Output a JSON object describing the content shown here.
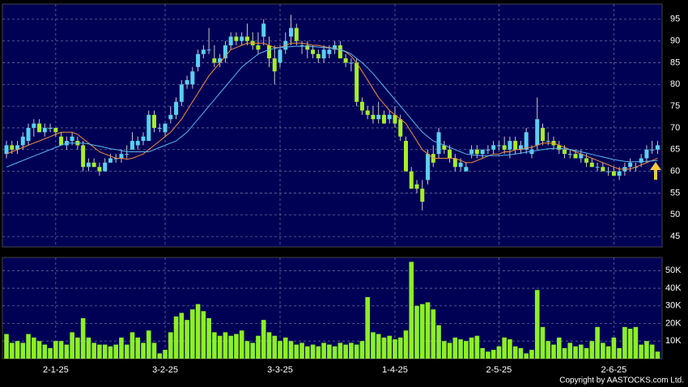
{
  "chart_data": {
    "type": "candlestick",
    "x": [
      null,
      null,
      null,
      null,
      null,
      null,
      null,
      null,
      null,
      "2-1-25",
      null,
      null,
      null,
      null,
      null,
      null,
      null,
      null,
      null,
      null,
      null,
      null,
      null,
      null,
      null,
      null,
      null,
      null,
      null,
      "3-2-25",
      null,
      null,
      null,
      null,
      null,
      null,
      null,
      null,
      null,
      null,
      null,
      null,
      null,
      null,
      null,
      null,
      null,
      null,
      null,
      null,
      "3-3-25",
      null,
      null,
      null,
      null,
      null,
      null,
      null,
      null,
      null,
      null,
      null,
      null,
      null,
      null,
      null,
      null,
      null,
      null,
      null,
      null,
      "1-4-25",
      null,
      null,
      null,
      null,
      null,
      null,
      null,
      null,
      null,
      null,
      null,
      null,
      null,
      null,
      null,
      null,
      null,
      null,
      "2-5-25",
      null,
      null,
      null,
      null,
      null,
      null,
      null,
      null,
      null,
      null,
      null,
      null,
      null,
      null,
      null,
      null,
      null,
      null,
      null,
      null,
      "2-6-25",
      null,
      null,
      null,
      null,
      null,
      null,
      null,
      null
    ],
    "ohlc": [
      [
        64,
        67,
        63,
        66
      ],
      [
        66,
        67,
        64,
        65
      ],
      [
        65,
        67,
        64,
        66
      ],
      [
        66,
        69,
        65,
        68
      ],
      [
        67,
        71,
        66,
        70
      ],
      [
        70,
        72,
        68,
        71
      ],
      [
        71,
        72,
        69,
        69
      ],
      [
        69,
        71,
        68,
        70
      ],
      [
        70,
        71,
        69,
        70
      ],
      [
        70,
        70,
        68,
        69
      ],
      [
        68,
        69,
        66,
        66
      ],
      [
        66,
        68,
        65,
        67
      ],
      [
        67,
        69,
        66,
        68
      ],
      [
        67,
        68,
        65,
        66
      ],
      [
        66,
        67,
        60,
        61
      ],
      [
        61,
        63,
        60,
        62
      ],
      [
        62,
        63,
        61,
        61
      ],
      [
        61,
        62,
        59,
        60
      ],
      [
        60,
        63,
        60,
        62
      ],
      [
        62,
        64,
        62,
        63
      ],
      [
        63,
        64,
        62,
        63
      ],
      [
        63,
        65,
        62,
        64
      ],
      [
        64,
        66,
        63,
        64
      ],
      [
        65,
        69,
        65,
        67
      ],
      [
        66,
        68,
        65,
        67
      ],
      [
        67,
        69,
        66,
        68
      ],
      [
        67,
        74,
        67,
        73
      ],
      [
        73,
        74,
        69,
        70
      ],
      [
        70,
        71,
        69,
        70
      ],
      [
        69,
        71,
        68,
        71
      ],
      [
        72,
        75,
        71,
        73
      ],
      [
        73,
        77,
        72,
        76
      ],
      [
        76,
        81,
        75,
        80
      ],
      [
        80,
        82,
        79,
        81
      ],
      [
        80,
        84,
        79,
        83
      ],
      [
        84,
        88,
        83,
        87
      ],
      [
        87,
        89,
        86,
        88
      ],
      [
        88,
        93,
        87,
        88
      ],
      [
        86,
        89,
        84,
        85
      ],
      [
        85,
        87,
        84,
        86
      ],
      [
        86,
        90,
        85,
        89
      ],
      [
        89,
        92,
        88,
        91
      ],
      [
        91,
        92,
        89,
        90
      ],
      [
        90,
        92,
        89,
        91
      ],
      [
        91,
        94,
        89,
        90
      ],
      [
        90,
        92,
        88,
        89
      ],
      [
        89,
        92,
        87,
        88
      ],
      [
        91,
        95,
        89,
        94
      ],
      [
        89,
        91,
        84,
        86
      ],
      [
        86,
        89,
        80,
        83
      ],
      [
        85,
        89,
        84,
        88
      ],
      [
        88,
        92,
        87,
        90
      ],
      [
        91,
        96,
        89,
        93
      ],
      [
        93,
        94,
        89,
        90
      ],
      [
        89,
        90,
        87,
        89
      ],
      [
        89,
        90,
        86,
        88
      ],
      [
        88,
        89,
        86,
        87
      ],
      [
        87,
        88,
        85,
        86
      ],
      [
        86,
        89,
        85,
        88
      ],
      [
        87,
        89,
        86,
        88
      ],
      [
        88,
        90,
        87,
        89
      ],
      [
        89,
        90,
        86,
        86
      ],
      [
        86,
        87,
        84,
        85
      ],
      [
        85,
        86,
        83,
        85
      ],
      [
        85,
        86,
        75,
        76
      ],
      [
        76,
        77,
        73,
        74
      ],
      [
        74,
        75,
        72,
        73
      ],
      [
        73,
        75,
        71,
        72
      ],
      [
        72,
        76,
        71,
        73
      ],
      [
        73,
        74,
        71,
        71
      ],
      [
        72,
        74,
        71,
        73
      ],
      [
        73,
        75,
        70,
        71
      ],
      [
        72,
        73,
        67,
        68
      ],
      [
        67,
        68,
        60,
        60
      ],
      [
        60,
        61,
        56,
        56
      ],
      [
        57,
        58,
        55,
        56
      ],
      [
        56,
        58,
        51,
        53
      ],
      [
        58,
        65,
        57,
        64
      ],
      [
        64,
        66,
        61,
        62
      ],
      [
        64,
        70,
        63,
        69
      ],
      [
        66,
        67,
        64,
        65
      ],
      [
        65,
        66,
        62,
        63
      ],
      [
        63,
        64,
        60,
        61
      ],
      [
        61,
        63,
        60,
        62
      ],
      [
        60,
        62,
        60,
        61
      ],
      [
        64,
        66,
        63,
        65
      ],
      [
        65,
        66,
        63,
        64
      ],
      [
        64,
        65,
        63,
        65
      ],
      [
        65,
        66,
        64,
        65
      ],
      [
        65,
        67,
        64,
        66
      ],
      [
        66,
        67,
        65,
        66
      ],
      [
        66,
        68,
        64,
        65
      ],
      [
        65,
        68,
        63,
        67
      ],
      [
        67,
        68,
        64,
        65
      ],
      [
        65,
        67,
        64,
        66
      ],
      [
        65,
        70,
        64,
        69
      ],
      [
        64,
        66,
        63,
        65
      ],
      [
        66,
        77,
        65,
        72
      ],
      [
        70,
        71,
        66,
        67
      ],
      [
        67,
        69,
        66,
        67
      ],
      [
        67,
        68,
        65,
        66
      ],
      [
        66,
        67,
        64,
        65
      ],
      [
        65,
        66,
        63,
        64
      ],
      [
        64,
        65,
        63,
        64
      ],
      [
        64,
        65,
        63,
        63
      ],
      [
        63,
        65,
        62,
        64
      ],
      [
        63,
        64,
        61,
        62
      ],
      [
        62,
        63,
        61,
        61
      ],
      [
        61,
        62,
        60,
        61
      ],
      [
        61,
        62,
        60,
        60
      ],
      [
        60,
        61,
        59,
        60
      ],
      [
        60,
        61,
        59,
        59
      ],
      [
        59,
        61,
        58,
        60
      ],
      [
        60,
        62,
        59,
        61
      ],
      [
        61,
        63,
        60,
        62
      ],
      [
        61,
        62,
        60,
        61
      ],
      [
        62,
        64,
        61,
        63
      ],
      [
        63,
        66,
        62,
        65
      ],
      [
        65,
        67,
        64,
        65
      ],
      [
        65,
        67,
        64,
        66
      ]
    ],
    "up_color": "#5ad0f0",
    "down_color": "#a6ee2a",
    "series": [
      {
        "color": "#f0903a",
        "values": [
          64,
          64.5,
          65,
          65.5,
          66,
          66.5,
          67,
          67.5,
          68,
          68.5,
          69,
          69,
          69,
          68.5,
          67.5,
          66.5,
          65.5,
          64.5,
          64,
          63.5,
          63,
          63,
          62.8,
          63,
          63.5,
          64,
          65,
          66,
          67,
          68,
          69,
          70.5,
          72,
          74,
          76,
          78,
          80,
          82,
          83.5,
          85,
          86.5,
          88,
          88.5,
          89,
          89.5,
          89.5,
          89.5,
          89.5,
          89,
          88.5,
          88.5,
          89,
          89.5,
          89.5,
          89.5,
          89.3,
          89,
          89,
          88.7,
          88.5,
          88.3,
          88,
          87.5,
          86.5,
          85,
          83,
          81,
          79,
          77,
          75.5,
          74,
          73,
          72,
          71,
          69,
          67,
          65,
          64,
          63,
          63,
          63,
          63,
          63,
          62.5,
          62,
          62,
          62.5,
          63,
          63.5,
          64,
          64,
          64.5,
          64.5,
          65,
          65,
          65.5,
          65.5,
          66,
          66.5,
          66.5,
          66.5,
          66,
          65.5,
          65,
          64.5,
          64,
          63.5,
          63,
          62.5,
          62,
          61.5,
          61,
          60.5,
          60.5,
          60.5,
          61,
          61.5,
          62,
          62.5,
          63
        ]
      },
      {
        "color": "#5ab8f0",
        "values": [
          61,
          61.5,
          62,
          62.5,
          63,
          63.5,
          64,
          64.5,
          65,
          65.5,
          66,
          66.5,
          66.5,
          66.5,
          66.5,
          66.3,
          66,
          65.8,
          65.5,
          65.2,
          65,
          64.8,
          64.5,
          64.5,
          64.5,
          64.5,
          64.5,
          65,
          65.5,
          66,
          66.5,
          67,
          68,
          69,
          70.5,
          72,
          73.5,
          75,
          76.5,
          78,
          79.5,
          81,
          82.5,
          84,
          85,
          86,
          87,
          87.5,
          88,
          88.3,
          88.5,
          88.6,
          88.7,
          88.8,
          88.8,
          88.8,
          88.7,
          88.6,
          88.5,
          88.4,
          88.2,
          88,
          87.6,
          87,
          86,
          85,
          83.8,
          82.5,
          81,
          79.5,
          78,
          76.5,
          75,
          73.5,
          72,
          70.5,
          69,
          68,
          67,
          66.5,
          66,
          65.5,
          65,
          64.5,
          64,
          63.8,
          63.7,
          63.6,
          63.6,
          63.6,
          63.6,
          63.7,
          63.8,
          64,
          64.2,
          64.4,
          64.6,
          64.8,
          65,
          65.2,
          65.3,
          65.3,
          65.2,
          65,
          64.8,
          64.5,
          64.2,
          63.9,
          63.6,
          63.3,
          63,
          62.7,
          62.5,
          62.3,
          62.2,
          62.2,
          62.2,
          62.3,
          62.4,
          62.5
        ]
      }
    ],
    "ylim": [
      42.6,
      98.5
    ],
    "yticks": [
      45,
      50,
      55,
      60,
      65,
      70,
      75,
      80,
      85,
      90,
      95
    ],
    "grid": true,
    "volume": {
      "color": "#8cf024",
      "ylim": [
        0,
        57500
      ],
      "yticks": [
        {
          "value": 10000,
          "label": "10K"
        },
        {
          "value": 20000,
          "label": "20K"
        },
        {
          "value": 30000,
          "label": "30K"
        },
        {
          "value": 40000,
          "label": "40K"
        },
        {
          "value": 50000,
          "label": "50K"
        }
      ],
      "values": [
        14000,
        9000,
        10000,
        9000,
        14000,
        12000,
        10000,
        8000,
        6000,
        10000,
        10000,
        8000,
        15000,
        12000,
        23000,
        12000,
        9000,
        8000,
        8000,
        7000,
        8000,
        12000,
        8000,
        15000,
        12000,
        9000,
        16000,
        9000,
        3000,
        5000,
        15000,
        24000,
        26000,
        22000,
        28000,
        31000,
        27000,
        23000,
        15000,
        13000,
        15000,
        13000,
        14000,
        16000,
        10000,
        9000,
        13000,
        22000,
        15000,
        13000,
        10000,
        12000,
        10000,
        8000,
        9000,
        7000,
        8000,
        7000,
        9000,
        8000,
        7000,
        9000,
        8000,
        9000,
        8000,
        10000,
        35000,
        15000,
        14000,
        12000,
        13000,
        11000,
        12000,
        16000,
        55000,
        30000,
        31000,
        32000,
        28000,
        19000,
        10000,
        9000,
        12000,
        11000,
        10000,
        12000,
        13000,
        6000,
        4000,
        5000,
        7000,
        12000,
        11000,
        7000,
        6000,
        3000,
        5000,
        39000,
        18000,
        10000,
        8000,
        12000,
        6000,
        9000,
        7000,
        8000,
        6000,
        10000,
        18000,
        9000,
        7000,
        12000,
        6000,
        18000,
        17000,
        18000,
        8000,
        10000,
        8000,
        4000
      ]
    }
  },
  "footer": "Copyright by AASTOCKS.com Ltd."
}
